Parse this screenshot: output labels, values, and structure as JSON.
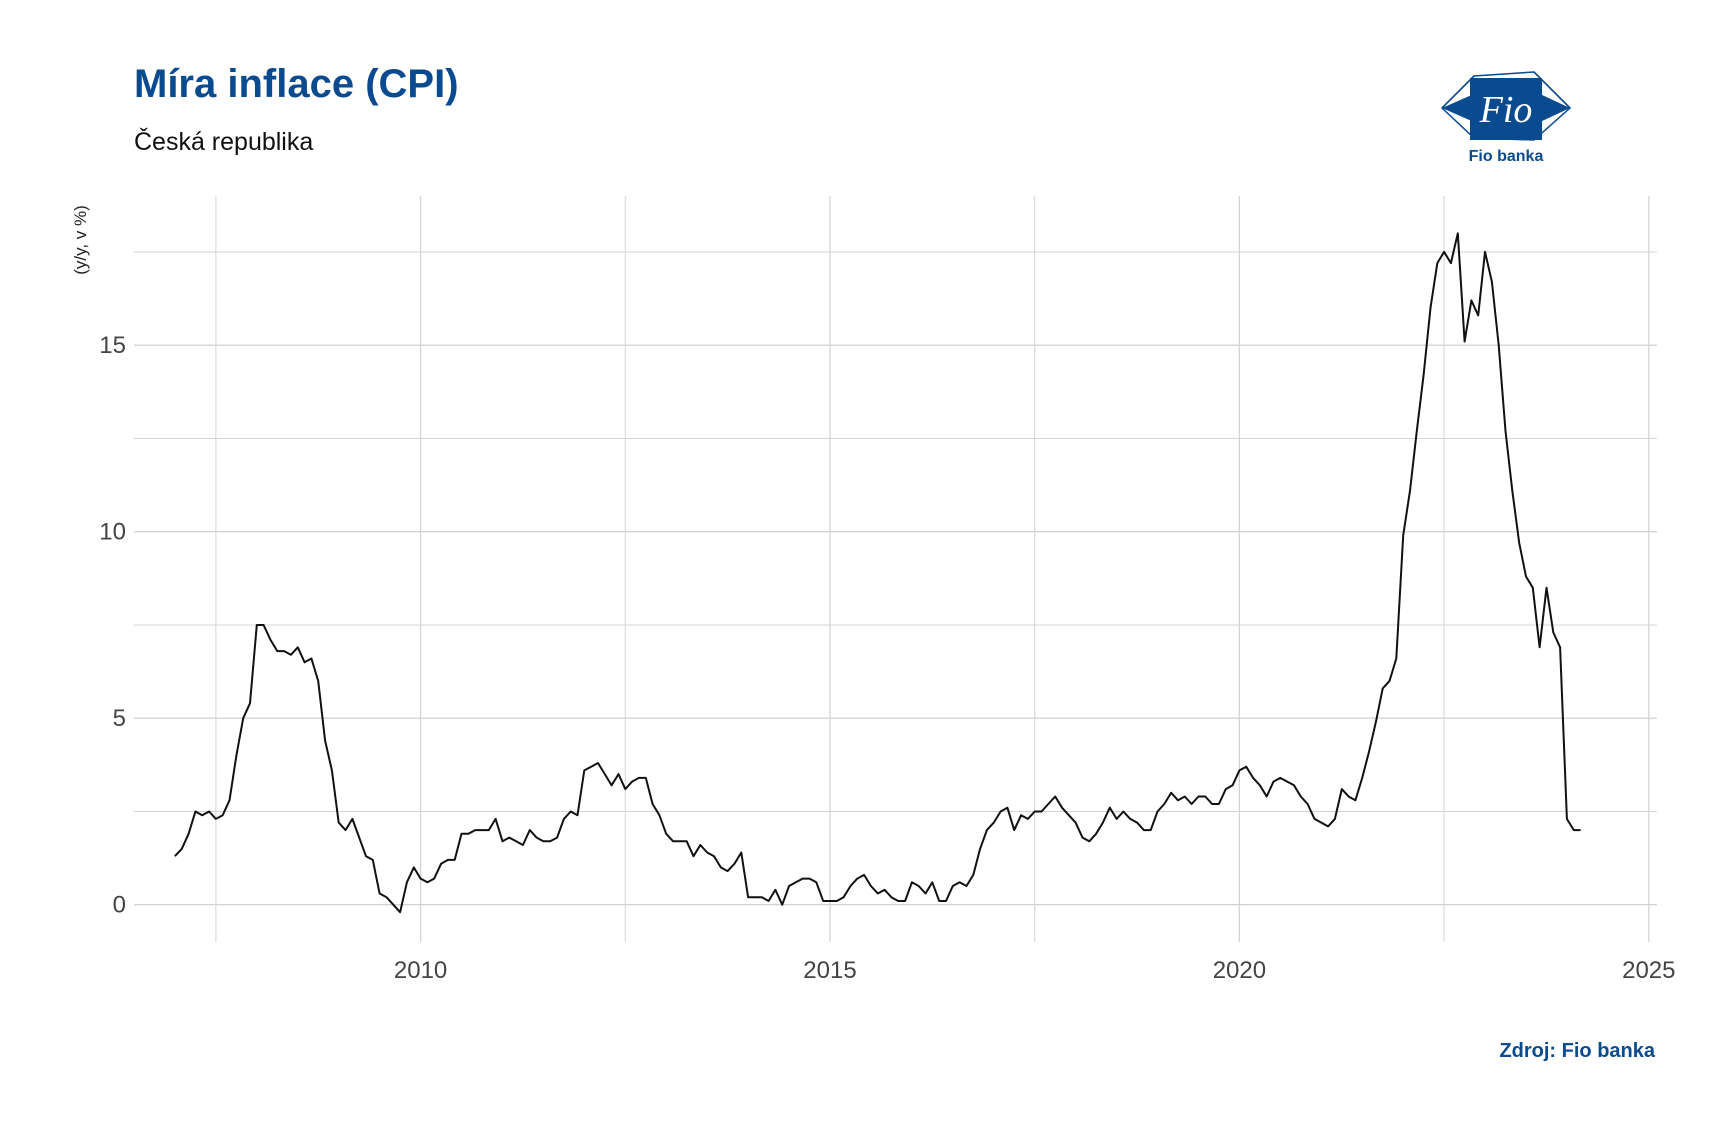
{
  "header": {
    "title": "Míra inflace (CPI)",
    "subtitle": "Česká republika"
  },
  "logo": {
    "mark_text": "Fio",
    "caption": "Fio banka",
    "icon": "fio-logo-icon",
    "color": "#0a4a8f"
  },
  "footer": {
    "source": "Zdroj: Fio banka"
  },
  "colors": {
    "line": "#111111",
    "grid": "#d4d4d4",
    "accent": "#0a4a8f"
  },
  "chart_data": {
    "type": "line",
    "ylabel": "(y/y, v %)",
    "xlabel": "",
    "xlim": [
      2006.5,
      2025.1
    ],
    "ylim": [
      -1,
      19
    ],
    "x_ticks": [
      2010,
      2015,
      2020,
      2025
    ],
    "y_ticks": [
      0,
      5,
      10,
      15
    ],
    "grid": true,
    "legend": "none",
    "series": [
      {
        "x_start": "2007-01",
        "frequency": "monthly",
        "values": [
          1.3,
          1.5,
          1.9,
          2.5,
          2.4,
          2.5,
          2.3,
          2.4,
          2.8,
          4.0,
          5.0,
          5.4,
          7.5,
          7.5,
          7.1,
          6.8,
          6.8,
          6.7,
          6.9,
          6.5,
          6.6,
          6.0,
          4.4,
          3.6,
          2.2,
          2.0,
          2.3,
          1.8,
          1.3,
          1.2,
          0.3,
          0.2,
          0.0,
          -0.2,
          0.6,
          1.0,
          0.7,
          0.6,
          0.7,
          1.1,
          1.2,
          1.2,
          1.9,
          1.9,
          2.0,
          2.0,
          2.0,
          2.3,
          1.7,
          1.8,
          1.7,
          1.6,
          2.0,
          1.8,
          1.7,
          1.7,
          1.8,
          2.3,
          2.5,
          2.4,
          3.6,
          3.7,
          3.8,
          3.5,
          3.2,
          3.5,
          3.1,
          3.3,
          3.4,
          3.4,
          2.7,
          2.4,
          1.9,
          1.7,
          1.7,
          1.7,
          1.3,
          1.6,
          1.4,
          1.3,
          1.0,
          0.9,
          1.1,
          1.4,
          0.2,
          0.2,
          0.2,
          0.1,
          0.4,
          0.0,
          0.5,
          0.6,
          0.7,
          0.7,
          0.6,
          0.1,
          0.1,
          0.1,
          0.2,
          0.5,
          0.7,
          0.8,
          0.5,
          0.3,
          0.4,
          0.2,
          0.1,
          0.1,
          0.6,
          0.5,
          0.3,
          0.6,
          0.1,
          0.1,
          0.5,
          0.6,
          0.5,
          0.8,
          1.5,
          2.0,
          2.2,
          2.5,
          2.6,
          2.0,
          2.4,
          2.3,
          2.5,
          2.5,
          2.7,
          2.9,
          2.6,
          2.4,
          2.2,
          1.8,
          1.7,
          1.9,
          2.2,
          2.6,
          2.3,
          2.5,
          2.3,
          2.2,
          2.0,
          2.0,
          2.5,
          2.7,
          3.0,
          2.8,
          2.9,
          2.7,
          2.9,
          2.9,
          2.7,
          2.7,
          3.1,
          3.2,
          3.6,
          3.7,
          3.4,
          3.2,
          2.9,
          3.3,
          3.4,
          3.3,
          3.2,
          2.9,
          2.7,
          2.3,
          2.2,
          2.1,
          2.3,
          3.1,
          2.9,
          2.8,
          3.4,
          4.1,
          4.9,
          5.8,
          6.0,
          6.6,
          9.9,
          11.1,
          12.7,
          14.2,
          16.0,
          17.2,
          17.5,
          17.2,
          18.0,
          15.1,
          16.2,
          15.8,
          17.5,
          16.7,
          15.0,
          12.7,
          11.1,
          9.7,
          8.8,
          8.5,
          6.9,
          8.5,
          7.3,
          6.9,
          2.3,
          2.0,
          2.0
        ]
      }
    ]
  }
}
